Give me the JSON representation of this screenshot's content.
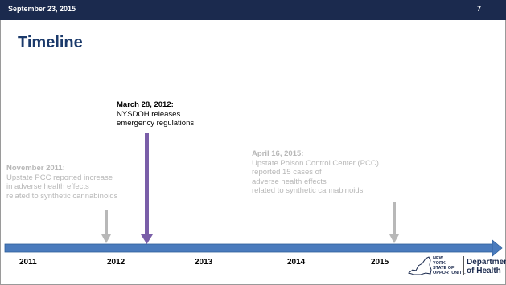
{
  "header": {
    "date": "September 23, 2015",
    "page_number": "7"
  },
  "slide": {
    "title": "Timeline"
  },
  "events": [
    {
      "date": "November 2011:",
      "text": "Upstate PCC reported increase\nin adverse health effects\nrelated to synthetic cannabinoids",
      "arrow_color": "#b8b8b8"
    },
    {
      "date": "March 28, 2012:",
      "text": "NYSDOH releases\nemergency regulations",
      "arrow_color": "#7a5ea8"
    },
    {
      "date": "April 16, 2015:",
      "text": "Upstate Poison Control Center (PCC)\nreported 15 cases of\nadverse health effects\nrelated to synthetic cannabinoids",
      "arrow_color": "#b8b8b8"
    }
  ],
  "timeline": {
    "years": [
      "2011",
      "2012",
      "2013",
      "2014",
      "2015"
    ],
    "bar_color": "#4a7bbd"
  },
  "logo": {
    "state_text": "NEW YORK\nSTATE OF\nOPPORTUNITY.",
    "department_text": "Department\nof Health"
  },
  "colors": {
    "header_bg": "#1b2a4e",
    "title": "#1b3a6b",
    "muted_text": "#b8b8b8"
  }
}
